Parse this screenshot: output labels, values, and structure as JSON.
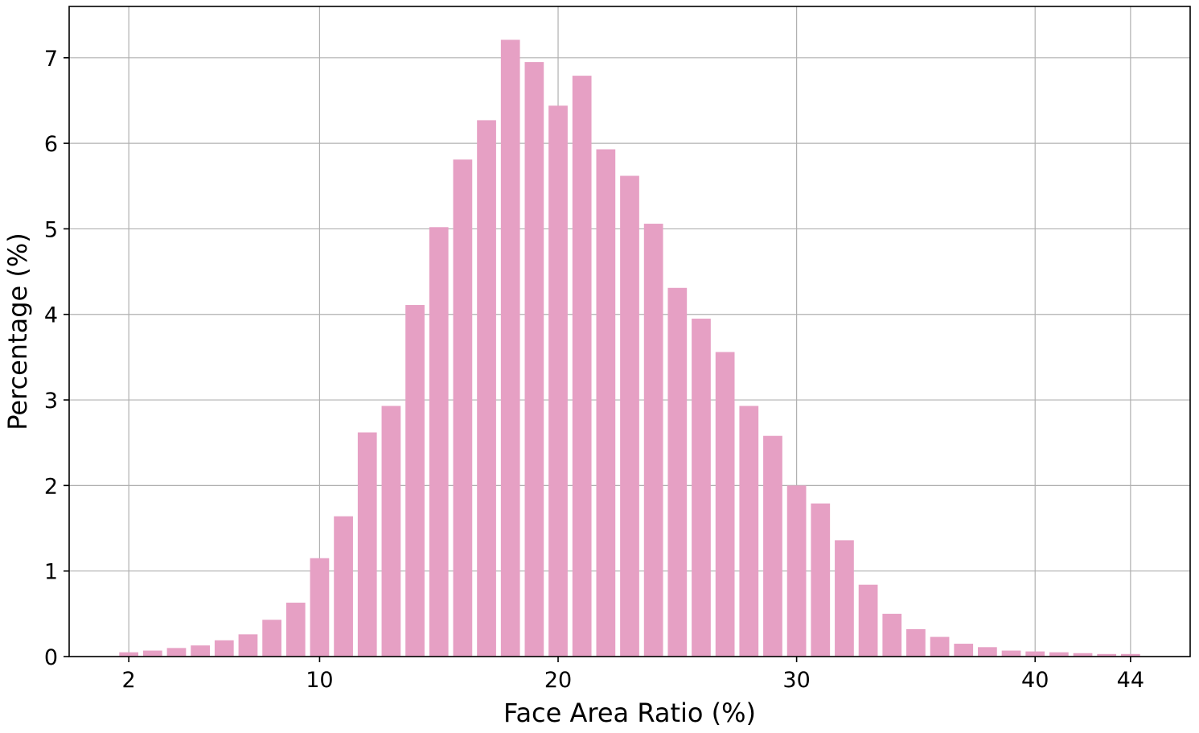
{
  "chart_data": {
    "type": "bar",
    "title": "",
    "xlabel": "Face Area Ratio (%)",
    "ylabel": "Percentage (%)",
    "x": [
      2,
      3,
      4,
      5,
      6,
      7,
      8,
      9,
      10,
      11,
      12,
      13,
      14,
      15,
      16,
      17,
      18,
      19,
      20,
      21,
      22,
      23,
      24,
      25,
      26,
      27,
      28,
      29,
      30,
      31,
      32,
      33,
      34,
      35,
      36,
      37,
      38,
      39,
      40,
      41,
      42,
      43,
      44
    ],
    "values": [
      0.05,
      0.07,
      0.1,
      0.13,
      0.19,
      0.26,
      0.43,
      0.63,
      1.15,
      1.64,
      2.62,
      2.93,
      4.11,
      5.02,
      5.81,
      6.27,
      7.21,
      6.95,
      6.44,
      6.79,
      5.93,
      5.62,
      5.06,
      4.31,
      3.95,
      3.56,
      2.93,
      2.58,
      2.0,
      1.79,
      1.36,
      0.84,
      0.5,
      0.32,
      0.23,
      0.15,
      0.11,
      0.07,
      0.06,
      0.05,
      0.04,
      0.03,
      0.03
    ],
    "xticks": [
      2,
      10,
      20,
      30,
      40,
      44
    ],
    "yticks": [
      0,
      1,
      2,
      3,
      4,
      5,
      6,
      7
    ],
    "xlim": [
      -0.5,
      46.5
    ],
    "ylim": [
      0,
      7.6
    ],
    "grid": true,
    "bar_color": "#e6a0c4"
  }
}
